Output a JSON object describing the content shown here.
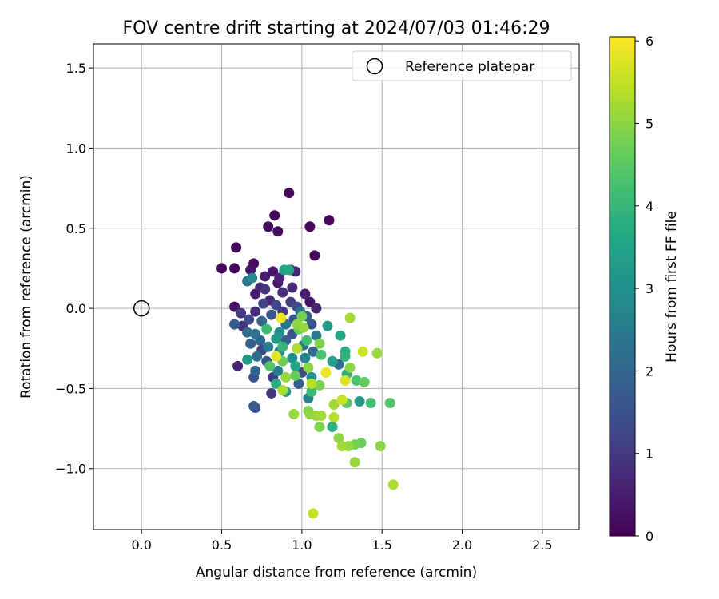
{
  "chart_data": {
    "type": "scatter",
    "title": "FOV centre drift starting at 2024/07/03 01:46:29",
    "xlabel": "Angular distance from reference (arcmin)",
    "ylabel": "Rotation from reference (arcmin)",
    "xlim": [
      -0.3,
      2.73
    ],
    "ylim": [
      -1.38,
      1.65
    ],
    "xticks": [
      0.0,
      0.5,
      1.0,
      1.5,
      2.0,
      2.5
    ],
    "xtick_labels": [
      "0.0",
      "0.5",
      "1.0",
      "1.5",
      "2.0",
      "2.5"
    ],
    "yticks": [
      -1.0,
      -0.5,
      0.0,
      0.5,
      1.0,
      1.5
    ],
    "ytick_labels": [
      "−1.0",
      "−0.5",
      "0.0",
      "0.5",
      "1.0",
      "1.5"
    ],
    "grid": true,
    "legend": {
      "placement": "top-right",
      "entries": [
        "Reference platepar"
      ]
    },
    "reference_point": {
      "x": 0.0,
      "y": 0.0,
      "label": "Reference platepar"
    },
    "colorbar": {
      "label": "Hours from first FF file",
      "min": 0,
      "max": 6.05,
      "ticks": [
        0,
        1,
        2,
        3,
        4,
        5,
        6
      ],
      "tick_labels": [
        "0",
        "1",
        "2",
        "3",
        "4",
        "5",
        "6"
      ],
      "colormap": "viridis"
    },
    "points": [
      {
        "x": 0.92,
        "y": 0.72,
        "h": 0.1
      },
      {
        "x": 0.83,
        "y": 0.58,
        "h": 0.1
      },
      {
        "x": 1.17,
        "y": 0.55,
        "h": 0.1
      },
      {
        "x": 0.79,
        "y": 0.51,
        "h": 0.1
      },
      {
        "x": 1.05,
        "y": 0.51,
        "h": 0.1
      },
      {
        "x": 0.85,
        "y": 0.48,
        "h": 0.2
      },
      {
        "x": 0.59,
        "y": 0.38,
        "h": 0.1
      },
      {
        "x": 1.08,
        "y": 0.33,
        "h": 0.1
      },
      {
        "x": 0.5,
        "y": 0.25,
        "h": 0.1
      },
      {
        "x": 0.58,
        "y": 0.25,
        "h": 0.1
      },
      {
        "x": 0.7,
        "y": 0.28,
        "h": 0.2
      },
      {
        "x": 0.68,
        "y": 0.24,
        "h": 0.3
      },
      {
        "x": 0.82,
        "y": 0.23,
        "h": 0.4
      },
      {
        "x": 0.93,
        "y": 0.24,
        "h": 0.3
      },
      {
        "x": 0.96,
        "y": 0.23,
        "h": 0.6
      },
      {
        "x": 0.89,
        "y": 0.24,
        "h": 3.4
      },
      {
        "x": 0.92,
        "y": 0.24,
        "h": 3.6
      },
      {
        "x": 0.77,
        "y": 0.2,
        "h": 0.5
      },
      {
        "x": 0.86,
        "y": 0.19,
        "h": 0.6
      },
      {
        "x": 0.66,
        "y": 0.17,
        "h": 2.4
      },
      {
        "x": 0.69,
        "y": 0.19,
        "h": 2.8
      },
      {
        "x": 0.74,
        "y": 0.13,
        "h": 0.6
      },
      {
        "x": 0.85,
        "y": 0.16,
        "h": 0.4
      },
      {
        "x": 0.94,
        "y": 0.13,
        "h": 0.7
      },
      {
        "x": 0.77,
        "y": 0.12,
        "h": 0.9
      },
      {
        "x": 0.71,
        "y": 0.09,
        "h": 0.5
      },
      {
        "x": 0.88,
        "y": 0.1,
        "h": 0.8
      },
      {
        "x": 1.02,
        "y": 0.09,
        "h": 0.5
      },
      {
        "x": 0.8,
        "y": 0.05,
        "h": 0.7
      },
      {
        "x": 0.93,
        "y": 0.04,
        "h": 1.1
      },
      {
        "x": 1.05,
        "y": 0.04,
        "h": 0.3
      },
      {
        "x": 0.58,
        "y": 0.01,
        "h": 0.3
      },
      {
        "x": 0.76,
        "y": 0.03,
        "h": 1.2
      },
      {
        "x": 0.84,
        "y": 0.02,
        "h": 1.3
      },
      {
        "x": 0.97,
        "y": 0.01,
        "h": 1.4
      },
      {
        "x": 1.09,
        "y": 0.0,
        "h": 0.6
      },
      {
        "x": 0.62,
        "y": -0.03,
        "h": 1.0
      },
      {
        "x": 0.71,
        "y": -0.02,
        "h": 0.8
      },
      {
        "x": 0.81,
        "y": -0.04,
        "h": 1.6
      },
      {
        "x": 0.88,
        "y": -0.02,
        "h": 1.0
      },
      {
        "x": 0.99,
        "y": -0.02,
        "h": 2.2
      },
      {
        "x": 1.03,
        "y": -0.05,
        "h": 1.8
      },
      {
        "x": 0.87,
        "y": -0.06,
        "h": 5.9
      },
      {
        "x": 1.3,
        "y": -0.06,
        "h": 5.2
      },
      {
        "x": 0.67,
        "y": -0.07,
        "h": 1.3
      },
      {
        "x": 0.75,
        "y": -0.08,
        "h": 2.0
      },
      {
        "x": 0.95,
        "y": -0.07,
        "h": 1.7
      },
      {
        "x": 1.0,
        "y": -0.05,
        "h": 4.8
      },
      {
        "x": 0.58,
        "y": -0.1,
        "h": 1.7
      },
      {
        "x": 0.63,
        "y": -0.11,
        "h": 0.9
      },
      {
        "x": 0.9,
        "y": -0.1,
        "h": 2.3
      },
      {
        "x": 0.97,
        "y": -0.1,
        "h": 5.0
      },
      {
        "x": 1.06,
        "y": -0.1,
        "h": 1.6
      },
      {
        "x": 1.16,
        "y": -0.11,
        "h": 3.3
      },
      {
        "x": 0.78,
        "y": -0.13,
        "h": 4.1
      },
      {
        "x": 0.98,
        "y": -0.13,
        "h": 4.6
      },
      {
        "x": 1.01,
        "y": -0.12,
        "h": 5.1
      },
      {
        "x": 0.66,
        "y": -0.15,
        "h": 2.1
      },
      {
        "x": 0.71,
        "y": -0.16,
        "h": 2.3
      },
      {
        "x": 0.86,
        "y": -0.15,
        "h": 3.0
      },
      {
        "x": 0.94,
        "y": -0.16,
        "h": 1.5
      },
      {
        "x": 1.09,
        "y": -0.17,
        "h": 2.5
      },
      {
        "x": 1.24,
        "y": -0.17,
        "h": 3.6
      },
      {
        "x": 0.74,
        "y": -0.2,
        "h": 2.0
      },
      {
        "x": 0.84,
        "y": -0.19,
        "h": 3.3
      },
      {
        "x": 0.9,
        "y": -0.2,
        "h": 1.9
      },
      {
        "x": 1.03,
        "y": -0.2,
        "h": 4.2
      },
      {
        "x": 1.11,
        "y": -0.22,
        "h": 4.9
      },
      {
        "x": 0.68,
        "y": -0.22,
        "h": 1.8
      },
      {
        "x": 0.79,
        "y": -0.24,
        "h": 2.6
      },
      {
        "x": 0.88,
        "y": -0.24,
        "h": 4.0
      },
      {
        "x": 0.97,
        "y": -0.25,
        "h": 5.3
      },
      {
        "x": 1.01,
        "y": -0.23,
        "h": 2.3
      },
      {
        "x": 0.75,
        "y": -0.26,
        "h": 1.2
      },
      {
        "x": 0.86,
        "y": -0.27,
        "h": 2.8
      },
      {
        "x": 1.07,
        "y": -0.27,
        "h": 2.0
      },
      {
        "x": 1.27,
        "y": -0.27,
        "h": 3.8
      },
      {
        "x": 1.38,
        "y": -0.27,
        "h": 5.6
      },
      {
        "x": 1.47,
        "y": -0.28,
        "h": 5.1
      },
      {
        "x": 0.72,
        "y": -0.3,
        "h": 2.2
      },
      {
        "x": 0.84,
        "y": -0.3,
        "h": 5.8
      },
      {
        "x": 0.94,
        "y": -0.31,
        "h": 3.0
      },
      {
        "x": 1.02,
        "y": -0.31,
        "h": 2.7
      },
      {
        "x": 1.12,
        "y": -0.29,
        "h": 4.3
      },
      {
        "x": 1.27,
        "y": -0.3,
        "h": 3.9
      },
      {
        "x": 0.66,
        "y": -0.32,
        "h": 3.2
      },
      {
        "x": 0.78,
        "y": -0.33,
        "h": 1.6
      },
      {
        "x": 0.88,
        "y": -0.33,
        "h": 4.7
      },
      {
        "x": 1.19,
        "y": -0.33,
        "h": 3.4
      },
      {
        "x": 1.23,
        "y": -0.35,
        "h": 2.1
      },
      {
        "x": 0.6,
        "y": -0.36,
        "h": 0.6
      },
      {
        "x": 0.8,
        "y": -0.36,
        "h": 4.4
      },
      {
        "x": 0.96,
        "y": -0.36,
        "h": 3.5
      },
      {
        "x": 1.04,
        "y": -0.37,
        "h": 5.0
      },
      {
        "x": 1.3,
        "y": -0.37,
        "h": 5.0
      },
      {
        "x": 0.71,
        "y": -0.39,
        "h": 1.9
      },
      {
        "x": 0.85,
        "y": -0.39,
        "h": 2.5
      },
      {
        "x": 1.0,
        "y": -0.4,
        "h": 1.3
      },
      {
        "x": 1.15,
        "y": -0.4,
        "h": 5.9
      },
      {
        "x": 0.7,
        "y": -0.43,
        "h": 1.5
      },
      {
        "x": 0.82,
        "y": -0.43,
        "h": 1.1
      },
      {
        "x": 0.9,
        "y": -0.43,
        "h": 5.1
      },
      {
        "x": 0.96,
        "y": -0.42,
        "h": 4.6
      },
      {
        "x": 1.06,
        "y": -0.43,
        "h": 3.0
      },
      {
        "x": 1.28,
        "y": -0.41,
        "h": 3.9
      },
      {
        "x": 1.34,
        "y": -0.45,
        "h": 4.3
      },
      {
        "x": 1.39,
        "y": -0.46,
        "h": 4.6
      },
      {
        "x": 0.84,
        "y": -0.47,
        "h": 3.7
      },
      {
        "x": 0.98,
        "y": -0.47,
        "h": 1.8
      },
      {
        "x": 1.06,
        "y": -0.47,
        "h": 5.4
      },
      {
        "x": 1.11,
        "y": -0.48,
        "h": 4.8
      },
      {
        "x": 1.27,
        "y": -0.45,
        "h": 5.7
      },
      {
        "x": 0.88,
        "y": -0.51,
        "h": 5.3
      },
      {
        "x": 0.9,
        "y": -0.52,
        "h": 3.4
      },
      {
        "x": 0.81,
        "y": -0.53,
        "h": 1.0
      },
      {
        "x": 1.06,
        "y": -0.52,
        "h": 4.1
      },
      {
        "x": 1.04,
        "y": -0.56,
        "h": 2.7
      },
      {
        "x": 1.36,
        "y": -0.58,
        "h": 3.3
      },
      {
        "x": 1.25,
        "y": -0.57,
        "h": 5.6
      },
      {
        "x": 1.2,
        "y": -0.6,
        "h": 5.2
      },
      {
        "x": 1.28,
        "y": -0.59,
        "h": 4.5
      },
      {
        "x": 1.43,
        "y": -0.59,
        "h": 4.2
      },
      {
        "x": 1.55,
        "y": -0.59,
        "h": 4.4
      },
      {
        "x": 0.7,
        "y": -0.61,
        "h": 1.7
      },
      {
        "x": 0.71,
        "y": -0.62,
        "h": 1.5
      },
      {
        "x": 0.95,
        "y": -0.66,
        "h": 5.1
      },
      {
        "x": 1.04,
        "y": -0.64,
        "h": 4.9
      },
      {
        "x": 1.05,
        "y": -0.66,
        "h": 5.0
      },
      {
        "x": 1.09,
        "y": -0.67,
        "h": 5.1
      },
      {
        "x": 1.12,
        "y": -0.67,
        "h": 5.2
      },
      {
        "x": 1.2,
        "y": -0.68,
        "h": 5.4
      },
      {
        "x": 1.11,
        "y": -0.74,
        "h": 4.9
      },
      {
        "x": 1.19,
        "y": -0.74,
        "h": 3.8
      },
      {
        "x": 1.23,
        "y": -0.81,
        "h": 5.0
      },
      {
        "x": 1.33,
        "y": -0.85,
        "h": 4.8
      },
      {
        "x": 1.37,
        "y": -0.84,
        "h": 4.7
      },
      {
        "x": 1.25,
        "y": -0.86,
        "h": 5.2
      },
      {
        "x": 1.29,
        "y": -0.86,
        "h": 5.1
      },
      {
        "x": 1.49,
        "y": -0.86,
        "h": 5.0
      },
      {
        "x": 1.33,
        "y": -0.96,
        "h": 5.1
      },
      {
        "x": 1.57,
        "y": -1.1,
        "h": 5.3
      },
      {
        "x": 1.07,
        "y": -1.28,
        "h": 5.5
      }
    ]
  }
}
